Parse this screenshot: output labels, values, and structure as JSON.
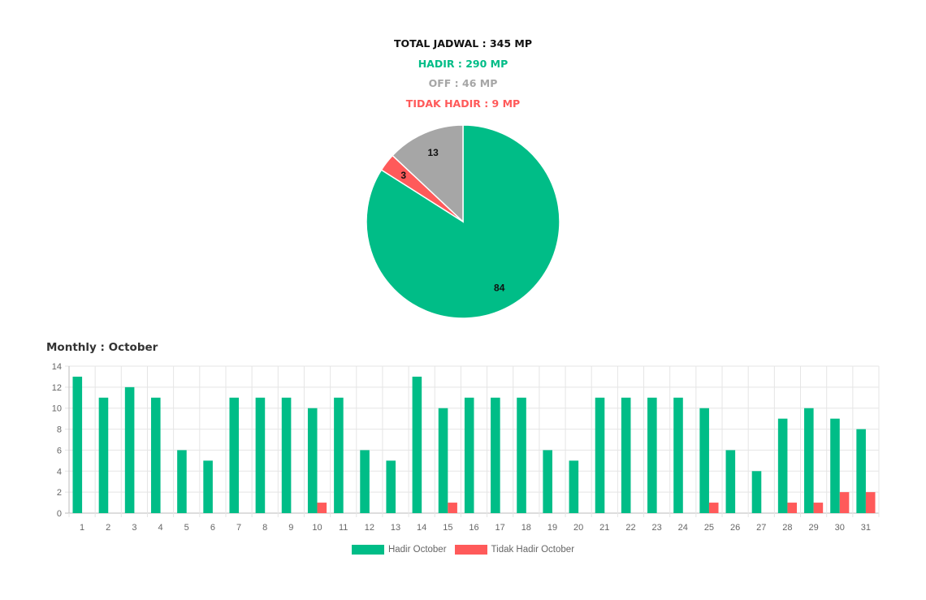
{
  "summary": {
    "total": "TOTAL JADWAL : 345 MP",
    "hadir": "HADIR : 290 MP",
    "off": "OFF : 46 MP",
    "tidak_hadir": "TIDAK HADIR : 9 MP"
  },
  "colors": {
    "hadir": "#00bd87",
    "tidak_hadir": "#ff5a5a",
    "off": "#a6a6a6",
    "total": "#111111"
  },
  "monthly_title": "Monthly : October",
  "chart_data": [
    {
      "type": "pie",
      "slices": [
        {
          "label": "84",
          "value": 84,
          "color": "#00bd87"
        },
        {
          "label": "3",
          "value": 3,
          "color": "#ff5a5a"
        },
        {
          "label": "13",
          "value": 13,
          "color": "#a6a6a6"
        }
      ]
    },
    {
      "type": "bar",
      "title": "Monthly : October",
      "categories": [
        "1",
        "2",
        "3",
        "4",
        "5",
        "6",
        "7",
        "8",
        "9",
        "10",
        "11",
        "12",
        "13",
        "14",
        "15",
        "16",
        "17",
        "18",
        "19",
        "20",
        "21",
        "22",
        "23",
        "24",
        "25",
        "26",
        "27",
        "28",
        "29",
        "30",
        "31"
      ],
      "series": [
        {
          "name": "Hadir October",
          "color": "#00bd87",
          "values": [
            13,
            11,
            12,
            11,
            6,
            5,
            11,
            11,
            11,
            10,
            11,
            6,
            5,
            13,
            10,
            11,
            11,
            11,
            6,
            5,
            11,
            11,
            11,
            11,
            10,
            6,
            4,
            9,
            10,
            9,
            8
          ]
        },
        {
          "name": "Tidak Hadir October",
          "color": "#ff5a5a",
          "values": [
            0,
            0,
            0,
            0,
            0,
            0,
            0,
            0,
            0,
            1,
            0,
            0,
            0,
            0,
            1,
            0,
            0,
            0,
            0,
            0,
            0,
            0,
            0,
            0,
            1,
            0,
            0,
            1,
            1,
            2,
            2
          ]
        }
      ],
      "ylim": [
        0,
        14
      ],
      "yticks": [
        0,
        2,
        4,
        6,
        8,
        10,
        12,
        14
      ],
      "grid": true,
      "legend": "bottom"
    }
  ]
}
